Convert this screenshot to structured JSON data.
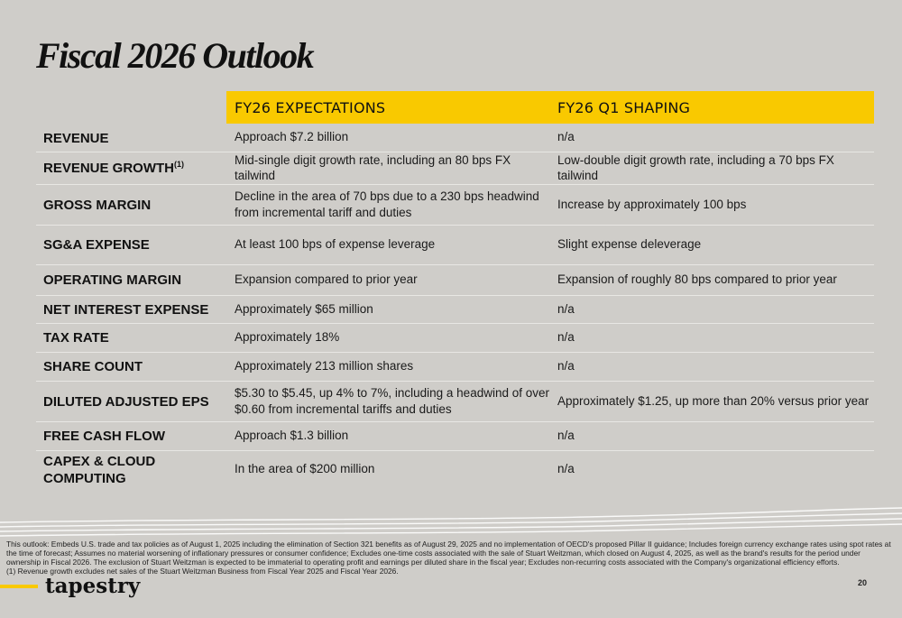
{
  "page": {
    "title": "Fiscal 2026 Outlook",
    "page_number": "20",
    "brand": "tapestry",
    "accent_color": "#f9c900",
    "background_color": "#cfcdc9"
  },
  "table": {
    "headers": [
      "FY26 EXPECTATIONS",
      "FY26 Q1 SHAPING"
    ],
    "rows": [
      {
        "metric": "REVENUE",
        "sup": "",
        "expectation": "Approach $7.2 billion",
        "q1": "n/a"
      },
      {
        "metric": "REVENUE GROWTH",
        "sup": "(1)",
        "expectation": "Mid-single digit growth rate, including an 80 bps FX tailwind",
        "q1": "Low-double digit growth rate, including a 70 bps FX tailwind"
      },
      {
        "metric": "GROSS MARGIN",
        "sup": "",
        "expectation": "Decline in the area of 70 bps due to a 230 bps headwind from incremental tariff and duties",
        "q1": "Increase by approximately 100 bps"
      },
      {
        "metric": "SG&A EXPENSE",
        "sup": "",
        "expectation": "At least 100 bps of expense leverage",
        "q1": "Slight expense deleverage"
      },
      {
        "metric": "OPERATING MARGIN",
        "sup": "",
        "expectation": "Expansion compared to prior year",
        "q1": "Expansion of roughly 80 bps compared to prior year"
      },
      {
        "metric": "NET INTEREST EXPENSE",
        "sup": "",
        "expectation": "Approximately $65 million",
        "q1": "n/a"
      },
      {
        "metric": "TAX RATE",
        "sup": "",
        "expectation": "Approximately 18%",
        "q1": "n/a"
      },
      {
        "metric": "SHARE COUNT",
        "sup": "",
        "expectation": "Approximately 213 million shares",
        "q1": "n/a"
      },
      {
        "metric": "DILUTED ADJUSTED EPS",
        "sup": "",
        "expectation": "$5.30 to $5.45, up 4% to 7%, including a headwind of over $0.60 from incremental tariffs and duties",
        "q1": "Approximately $1.25, up more than 20% versus prior year"
      },
      {
        "metric": "FREE CASH FLOW",
        "sup": "",
        "expectation": "Approach $1.3 billion",
        "q1": "n/a"
      },
      {
        "metric": "CAPEX & CLOUD COMPUTING",
        "sup": "",
        "expectation": "In the area of $200 million",
        "q1": "n/a"
      }
    ]
  },
  "footnotes": {
    "main": "This outlook: Embeds U.S. trade and tax policies as of August 1, 2025 including the elimination of Section 321 benefits as of August 29, 2025 and no implementation of OECD's proposed Pillar II guidance; Includes foreign currency exchange rates using spot rates at the time of forecast; Assumes no material worsening of inflationary pressures or consumer confidence; Excludes one-time costs associated with the sale of Stuart Weitzman, which closed on August 4, 2025, as well as the brand's results for the period under ownership in Fiscal 2026.  The exclusion of Stuart Weitzman is expected to be immaterial to operating profit and earnings per diluted share in the fiscal year; Excludes non-recurring costs associated with the Company's organizational efficiency efforts.",
    "note1": "(1) Revenue growth excludes net sales of the Stuart Weitzman Business from Fiscal Year 2025 and Fiscal Year 2026."
  }
}
